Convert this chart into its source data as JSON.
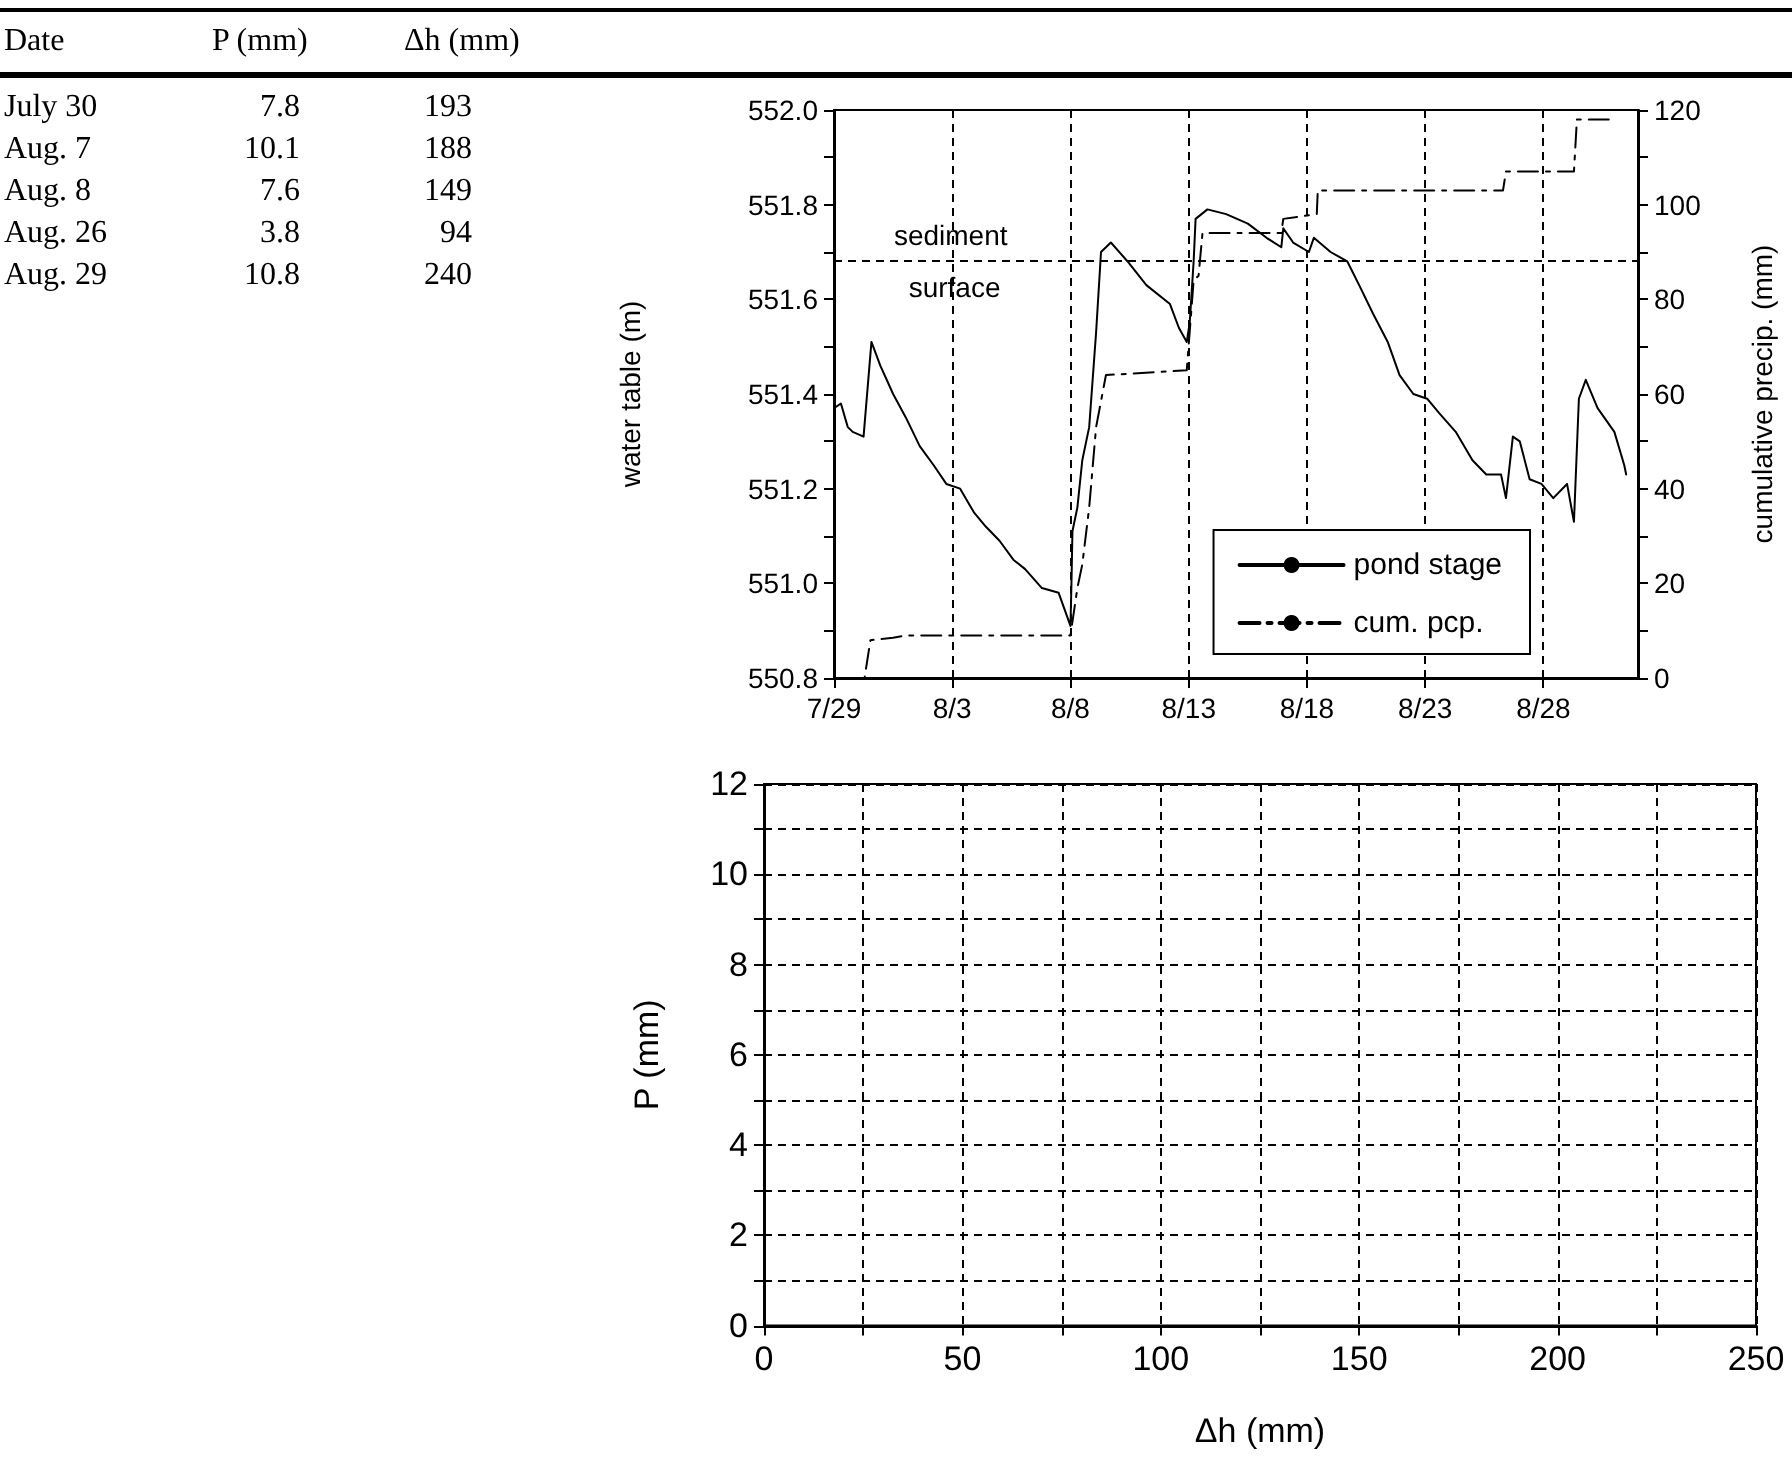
{
  "chart_data": [
    {
      "type": "other",
      "annotations": [
        "Date",
        "P (mm)",
        "Δh (mm)",
        "July 30",
        "7.8",
        "193",
        "Aug. 7",
        "10.1",
        "188",
        "Aug. 8",
        "7.6",
        "149",
        "Aug. 26",
        "3.8",
        "94",
        "Aug. 29",
        "10.8",
        "240"
      ]
    },
    {
      "type": "line",
      "ylabel": "water table (m)",
      "y2label": "cumulative precip. (mm)",
      "xlim": [
        "--07-29",
        "--09-01"
      ],
      "xticks": [
        {
          "value": "--07-29",
          "label": "7/29"
        },
        {
          "value": "--08-03",
          "label": "8/3"
        },
        {
          "value": "--08-08",
          "label": "8/8"
        },
        {
          "value": "--08-13",
          "label": "8/13"
        },
        {
          "value": "--08-18",
          "label": "8/18"
        },
        {
          "value": "--08-23",
          "label": "8/23"
        },
        {
          "value": "--08-28",
          "label": "8/28"
        }
      ],
      "ylim": [
        550.8,
        552.0
      ],
      "yticks": [
        {
          "value": 550.8,
          "label": "550.8"
        },
        {
          "value": 550.9,
          "label": null
        },
        {
          "value": 551,
          "label": "551.0"
        },
        {
          "value": 551.1,
          "label": null
        },
        {
          "value": 551.2,
          "label": "551.2"
        },
        {
          "value": 551.3,
          "label": null
        },
        {
          "value": 551.4,
          "label": "551.4"
        },
        {
          "value": 551.5,
          "label": null
        },
        {
          "value": 551.6,
          "label": "551.6"
        },
        {
          "value": 551.7,
          "label": null
        },
        {
          "value": 551.8,
          "label": "551.8"
        },
        {
          "value": 551.9,
          "label": null
        },
        {
          "value": 552,
          "label": "552.0"
        }
      ],
      "y2lim": [
        0,
        120
      ],
      "y2ticks": [
        0,
        {
          "value": 10,
          "label": null
        },
        20,
        {
          "value": 30,
          "label": null
        },
        40,
        {
          "value": 50,
          "label": null
        },
        60,
        {
          "value": 70,
          "label": null
        },
        80,
        {
          "value": 90,
          "label": null
        },
        100,
        {
          "value": 110,
          "label": null
        },
        120
      ],
      "grid": "x",
      "legend": "bottom right",
      "marker": "none",
      "ref_lines": [
        {
          "axis": "y",
          "value": 551.68,
          "label": "sediment surface",
          "color": "#000000",
          "line_style": "dashed"
        }
      ],
      "series": [
        {
          "name": "pond stage",
          "color": "#000000",
          "line_style": "solid",
          "x": [
            "--07-29T00:00",
            "--07-29T07:00",
            "--07-29T14:00",
            "--07-29T19:00",
            "--07-30T06:00",
            "--07-30T14:00",
            "--07-30T23:00",
            "--07-31T12:00",
            "--08-01T01:00",
            "--08-01T15:00",
            "--08-02T05:00",
            "--08-02T18:00",
            "--08-03T08:00",
            "--08-03T22:00",
            "--08-04T10:00",
            "--08-05T00:00",
            "--08-05T14:00",
            "--08-06T02:00",
            "--08-06T19:00",
            "--08-07T12:00",
            "--08-08T00:00",
            "--08-08T01:00",
            "--08-08T02:00",
            "--08-08T07:00",
            "--08-08T12:00",
            "--08-08T19:00",
            "--08-09T02:00",
            "--08-09T07:00",
            "--08-09T17:00",
            "--08-10T10:00",
            "--08-11T05:00",
            "--08-12T05:00",
            "--08-12T14:00",
            "--08-12T22:00",
            "--08-13T01:00",
            "--08-13T05:00",
            "--08-13T07:00",
            "--08-13T19:00",
            "--08-14T14:00",
            "--08-15T12:00",
            "--08-16T07:00",
            "--08-16T22:00",
            "--08-17T00:00",
            "--08-17T10:00",
            "--08-18T02:00",
            "--08-18T07:00",
            "--08-19T00:00",
            "--08-19T17:00",
            "--08-20T05:00",
            "--08-20T19:00",
            "--08-21T10:00",
            "--08-21T22:00",
            "--08-22T12:00",
            "--08-23T02:00",
            "--08-23T14:00",
            "--08-24T07:00",
            "--08-25T00:00",
            "--08-25T14:00",
            "--08-26T05:00",
            "--08-26T10:00",
            "--08-26T17:00",
            "--08-27T00:00",
            "--08-27T10:00",
            "--08-27T22:00",
            "--08-28T10:00",
            "--08-29T00:00",
            "--08-29T07:00",
            "--08-29T12:00",
            "--08-29T19:00",
            "--08-30T07:00",
            "--08-31T00:00",
            "--08-31T10:00",
            "--08-31T12:00"
          ],
          "values": [
            551.37,
            551.38,
            551.33,
            551.32,
            551.31,
            551.51,
            551.46,
            551.4,
            551.35,
            551.29,
            551.25,
            551.21,
            551.2,
            551.15,
            551.12,
            551.09,
            551.05,
            551.03,
            550.99,
            550.98,
            550.91,
            551.0,
            551.11,
            551.16,
            551.26,
            551.33,
            551.53,
            551.7,
            551.72,
            551.68,
            551.63,
            551.59,
            551.54,
            551.51,
            551.55,
            551.68,
            551.77,
            551.79,
            551.78,
            551.76,
            551.73,
            551.71,
            551.75,
            551.72,
            551.7,
            551.73,
            551.7,
            551.68,
            551.63,
            551.57,
            551.51,
            551.44,
            551.4,
            551.39,
            551.36,
            551.32,
            551.26,
            551.23,
            551.23,
            551.18,
            551.31,
            551.3,
            551.22,
            551.21,
            551.18,
            551.21,
            551.13,
            551.39,
            551.43,
            551.37,
            551.32,
            551.25,
            551.23
          ]
        },
        {
          "name": "cum. pcp.",
          "color": "#000000",
          "line_style": "dashed",
          "axis": "y2",
          "x": [
            "--07-29T00:00",
            "--07-30T07:00",
            "--07-30T13:00",
            "--07-31T12:00",
            "--08-01T02:00",
            "--08-08T00:00",
            "--08-08T07:00",
            "--08-08T12:00",
            "--08-08T19:00",
            "--08-09T02:00",
            "--08-09T12:00",
            "--08-12T22:00",
            "--08-13T05:00",
            "--08-13T10:00",
            "--08-13T14:00",
            "--08-16T22:00",
            "--08-17T00:00",
            "--08-18T10:00",
            "--08-18T11:00",
            "--08-26T07:00",
            "--08-26T10:00",
            "--08-29T07:00",
            "--08-29T10:00",
            "--08-30T19:00"
          ],
          "values": [
            0,
            0,
            8,
            8.5,
            9,
            9,
            19,
            24,
            36,
            53,
            64,
            65,
            84,
            85,
            94,
            94,
            97,
            98,
            103,
            103,
            107,
            107,
            118,
            118
          ]
        }
      ]
    },
    {
      "type": "scatter",
      "xlabel": "Δh (mm)",
      "ylabel": "P (mm)",
      "xlim": [
        0,
        250
      ],
      "xticks": [
        0,
        {
          "value": 25,
          "label": null
        },
        50,
        {
          "value": 75,
          "label": null
        },
        100,
        {
          "value": 125,
          "label": null
        },
        150,
        {
          "value": 175,
          "label": null
        },
        200,
        {
          "value": 225,
          "label": null
        },
        250
      ],
      "ylim": [
        0,
        12
      ],
      "yticks": [
        0,
        {
          "value": 1,
          "label": null
        },
        2,
        {
          "value": 3,
          "label": null
        },
        4,
        {
          "value": 5,
          "label": null
        },
        6,
        {
          "value": 7,
          "label": null
        },
        8,
        {
          "value": 9,
          "label": null
        },
        10,
        {
          "value": 11,
          "label": null
        },
        12
      ],
      "grid": true
    }
  ]
}
